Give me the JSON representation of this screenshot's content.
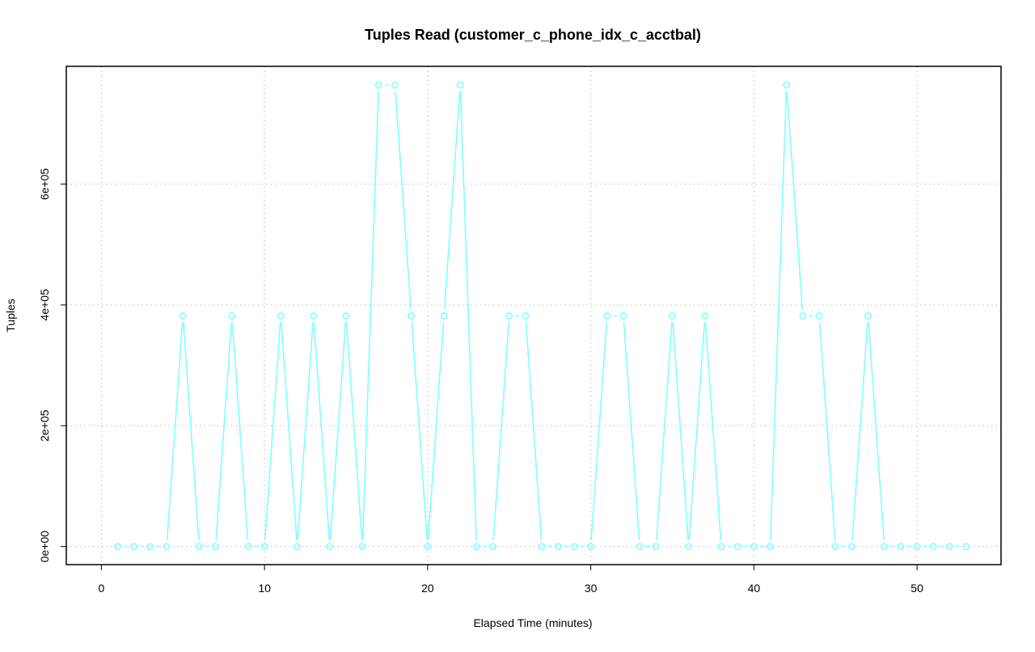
{
  "chart_data": {
    "type": "line",
    "title": "Tuples Read (customer_c_phone_idx_c_acctbal)",
    "xlabel": "Elapsed Time (minutes)",
    "ylabel": "Tuples",
    "xlim": [
      -2.15,
      55.15
    ],
    "ylim": [
      -30000,
      795000
    ],
    "xticks": [
      0,
      10,
      20,
      30,
      40,
      50
    ],
    "xtick_labels": [
      "0",
      "10",
      "20",
      "30",
      "40",
      "50"
    ],
    "yticks": [
      0,
      200000,
      400000,
      600000
    ],
    "ytick_labels": [
      "0e+00",
      "2e+05",
      "4e+05",
      "6e+05"
    ],
    "grid": true,
    "series": [
      {
        "color": "#7fffff",
        "marker": "circle",
        "x": [
          1,
          2,
          3,
          4,
          5,
          6,
          7,
          8,
          9,
          10,
          11,
          12,
          13,
          14,
          15,
          16,
          17,
          18,
          19,
          20,
          21,
          22,
          23,
          24,
          25,
          26,
          27,
          28,
          29,
          30,
          31,
          32,
          33,
          34,
          35,
          36,
          37,
          38,
          39,
          40,
          41,
          42,
          43,
          44,
          45,
          46,
          47,
          48,
          49,
          50,
          51,
          52,
          53
        ],
        "values": [
          0,
          0,
          0,
          0,
          382000,
          0,
          0,
          382000,
          0,
          0,
          382000,
          0,
          382000,
          0,
          382000,
          0,
          764000,
          764000,
          382000,
          0,
          382000,
          764000,
          0,
          0,
          382000,
          382000,
          0,
          0,
          0,
          0,
          382000,
          382000,
          0,
          0,
          382000,
          0,
          382000,
          0,
          0,
          0,
          0,
          764000,
          382000,
          382000,
          0,
          0,
          382000,
          0,
          0,
          0,
          0,
          0,
          0
        ]
      }
    ]
  }
}
